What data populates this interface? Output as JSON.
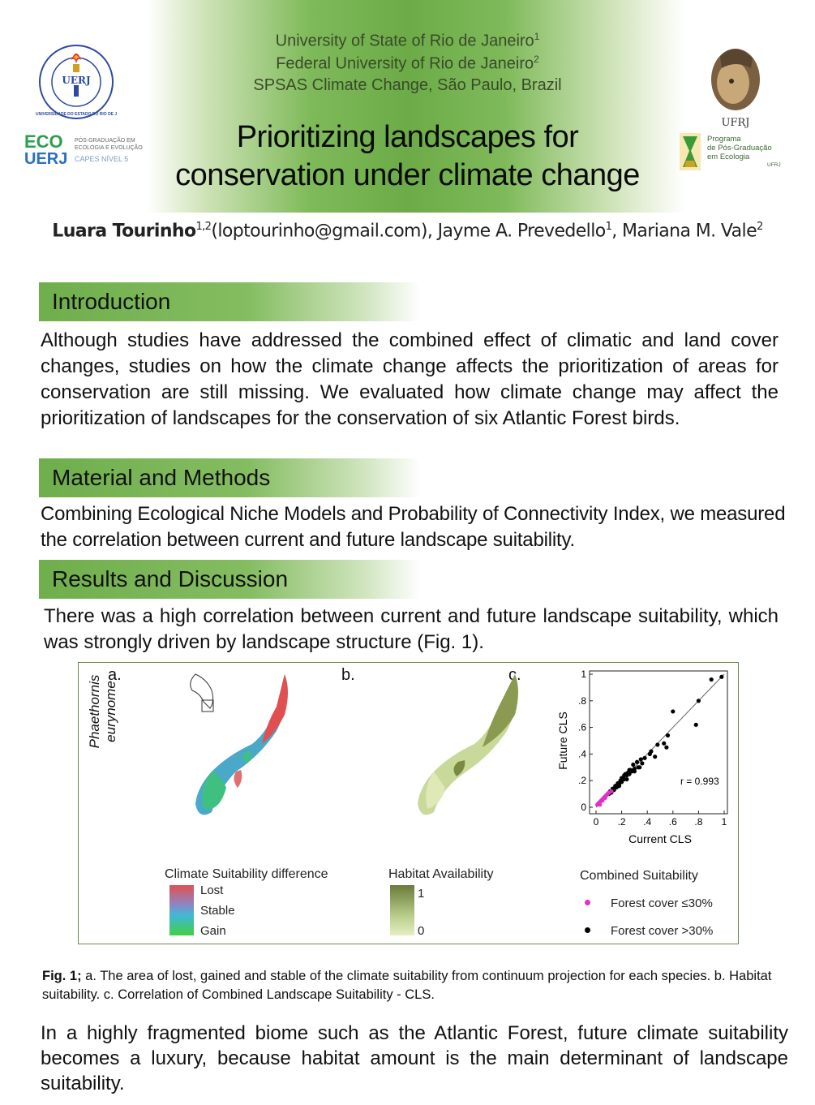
{
  "header": {
    "institutions": [
      "University of State of Rio de Janeiro",
      "Federal University of Rio de Janeiro",
      "SPSAS Climate Change, São Paulo, Brazil"
    ],
    "institution_marks": [
      "1",
      "2",
      ""
    ],
    "title_line1": "Prioritizing landscapes for",
    "title_line2": "conservation under climate change",
    "logos": {
      "uerj_ring": "UNIVERSIDADE DO ESTADO DO RIO DE JANEIRO",
      "uerj_center": "UERJ",
      "eco_top": "ECO",
      "eco_bottom": "UERJ",
      "eco_side_1": "PÓS-GRADUAÇÃO EM",
      "eco_side_2": "ECOLOGIA E EVOLUÇÃO",
      "eco_side_3": "CAPES NÍVEL 5",
      "ufrj_label": "UFRJ",
      "ufrj_prog_1": "Programa",
      "ufrj_prog_2": "de Pós-Graduação",
      "ufrj_prog_3": "em Ecologia",
      "ufrj_prog_4": "UFRJ"
    }
  },
  "authors": {
    "author1": "Luara Tourinho",
    "author1_sup": "1,2",
    "author1_email": "(loptourinho@gmail.com), ",
    "author2": "Jayme A. Prevedello",
    "author2_sup": "1",
    "sep": ", ",
    "author3": "Mariana M. Vale",
    "author3_sup": "2"
  },
  "sections": {
    "intro_title": "Introduction",
    "intro_text": "Although studies have addressed the combined effect of climatic and land cover changes, studies on how the climate change affects the prioritization of areas for conservation are still missing. We evaluated how climate change may affect the prioritization of landscapes for the conservation of six Atlantic Forest birds.",
    "methods_title": "Material and Methods",
    "methods_text": "Combining Ecological Niche Models and Probability of Connectivity Index, we measured the correlation between current and future landscape suitability.",
    "results_title": "Results and Discussion",
    "results_text": "There was a high correlation between current and future landscape suitability, which was strongly driven by landscape structure (Fig. 1).",
    "conclusion_text": "In a highly fragmented biome such as the Atlantic Forest, future climate suitability becomes a luxury, because habitat amount is the main determinant of landscape suitability."
  },
  "figure": {
    "panel_a": "a.",
    "panel_b": "b.",
    "panel_c": "c.",
    "species": "Phaethornis eurynome",
    "legend_climate_title": "Climate Suitability difference",
    "legend_climate_items": [
      "Lost",
      "Stable",
      "Gain"
    ],
    "legend_habitat_title": "Habitat Availability",
    "legend_habitat_max": "1",
    "legend_habitat_min": "0",
    "legend_combined_title": "Combined Suitability",
    "legend_combined_items": [
      "Forest cover ≤30%",
      "Forest cover >30%"
    ],
    "colors": {
      "lost": "#e05050",
      "stable": "#4aa8c8",
      "gain": "#40d040",
      "habitat_high": "#6a7a3a",
      "habitat_low": "#e4efc0",
      "pink": "#e030c8",
      "black": "#000000"
    }
  },
  "caption": {
    "label": "Fig. 1;",
    "text": " a. The area of lost, gained and stable of the climate suitability from continuum projection for each species. b. Habitat suitability. c. Correlation of Combined Landscape Suitability - CLS."
  },
  "chart_data": {
    "type": "scatter",
    "title": "",
    "xlabel": "Current CLS",
    "ylabel": "Future CLS",
    "xlim": [
      0,
      1
    ],
    "ylim": [
      0,
      1
    ],
    "xticks": [
      "0",
      ".2",
      ".4",
      ".6",
      ".8",
      "1"
    ],
    "yticks": [
      "0",
      ".2",
      ".4",
      ".6",
      ".8",
      "1"
    ],
    "annotation": "r = 0.993",
    "series": [
      {
        "name": "Forest cover ≤30%",
        "color": "#e030c8",
        "x": [
          0.01,
          0.02,
          0.03,
          0.04,
          0.05,
          0.06,
          0.07,
          0.08,
          0.09,
          0.1,
          0.12,
          0.03,
          0.05,
          0.07
        ],
        "y": [
          0.02,
          0.03,
          0.04,
          0.05,
          0.05,
          0.07,
          0.08,
          0.09,
          0.1,
          0.11,
          0.12,
          0.02,
          0.06,
          0.07
        ]
      },
      {
        "name": "Forest cover >30%",
        "color": "#000000",
        "x": [
          0.98,
          0.9,
          0.78,
          0.8,
          0.6,
          0.56,
          0.55,
          0.53,
          0.48,
          0.46,
          0.43,
          0.42,
          0.38,
          0.36,
          0.35,
          0.33,
          0.32,
          0.3,
          0.29,
          0.28,
          0.27,
          0.26,
          0.25,
          0.24,
          0.23,
          0.22,
          0.21,
          0.2,
          0.19,
          0.18,
          0.17,
          0.16,
          0.15,
          0.14,
          0.13,
          0.12,
          0.11,
          0.1,
          0.3,
          0.34,
          0.26,
          0.22,
          0.2,
          0.24,
          0.18
        ],
        "y": [
          0.98,
          0.96,
          0.62,
          0.8,
          0.72,
          0.54,
          0.45,
          0.48,
          0.47,
          0.38,
          0.42,
          0.4,
          0.37,
          0.33,
          0.36,
          0.3,
          0.34,
          0.29,
          0.32,
          0.27,
          0.28,
          0.25,
          0.26,
          0.24,
          0.25,
          0.21,
          0.22,
          0.19,
          0.2,
          0.17,
          0.18,
          0.15,
          0.16,
          0.13,
          0.14,
          0.11,
          0.12,
          0.1,
          0.27,
          0.3,
          0.28,
          0.24,
          0.22,
          0.21,
          0.16
        ]
      }
    ]
  }
}
